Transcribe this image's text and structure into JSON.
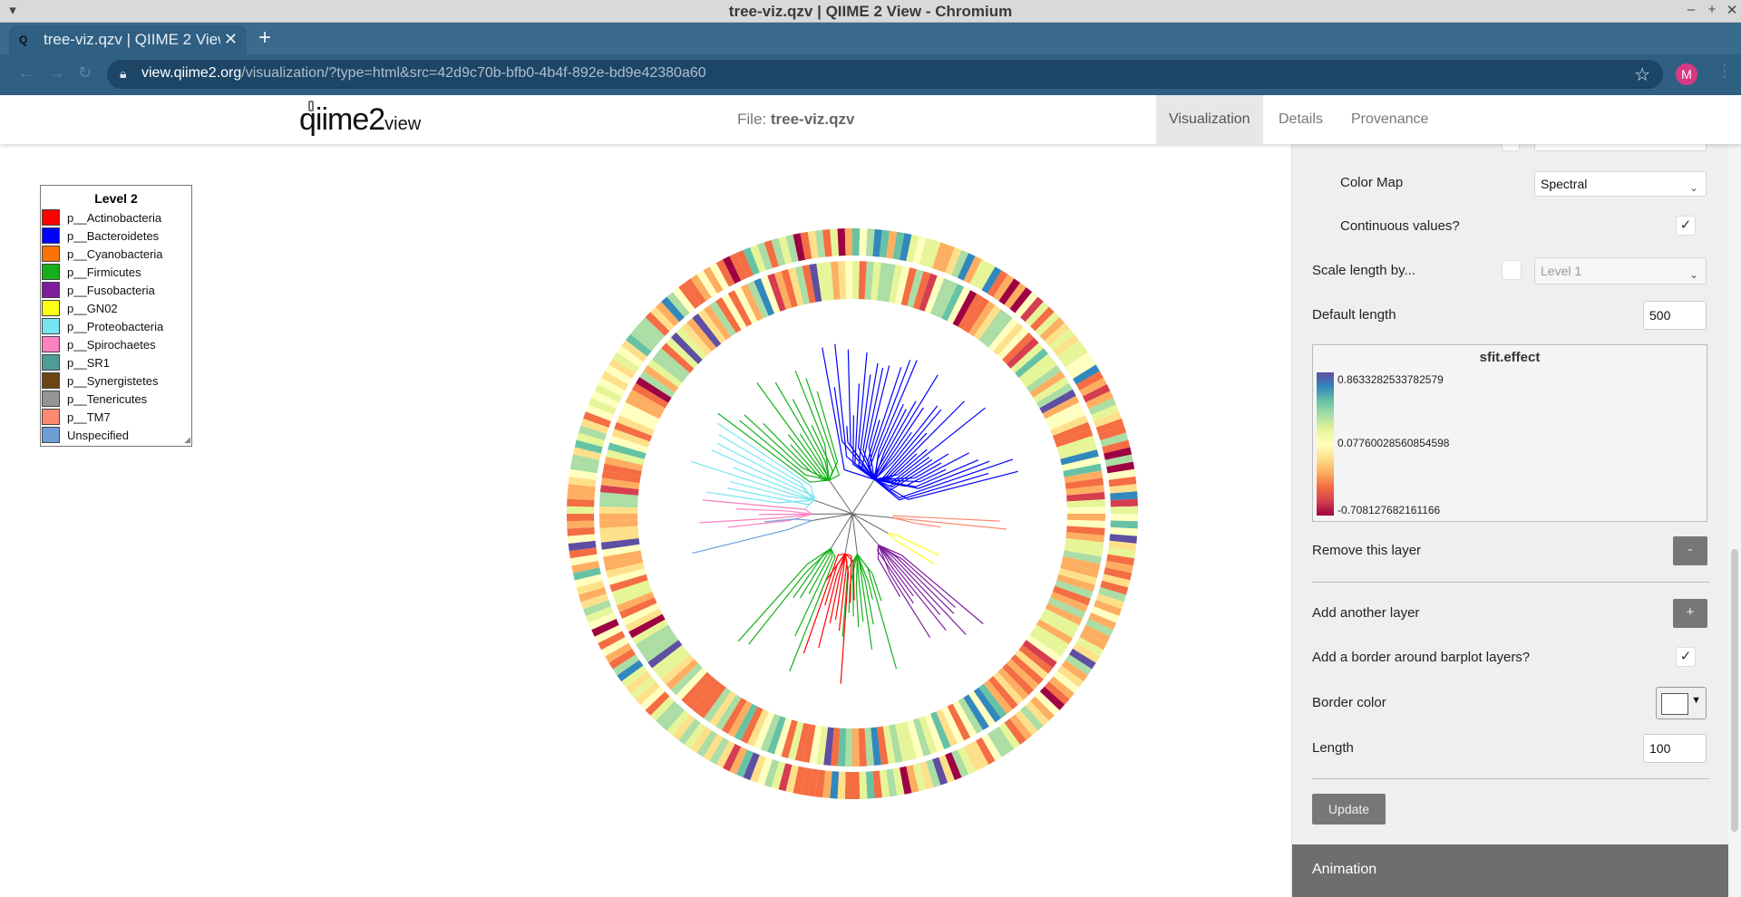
{
  "window": {
    "title": "tree-viz.qzv | QIIME 2 View - Chromium"
  },
  "browser": {
    "tab_title": "tree-viz.qzv | QIIME 2 View",
    "favicon_text": "Q",
    "url_domain": "view.qiime2.org",
    "url_path": "/visualization/?type=html&src=42d9c70b-bfb0-4b4f-892e-bd9e42380a60",
    "profile_initial": "M"
  },
  "header": {
    "logo_main": "qiime2",
    "logo_sub": "view",
    "file_prefix": "File: ",
    "file_name": "tree-viz.qzv",
    "tabs": [
      "Visualization",
      "Details",
      "Provenance"
    ],
    "active_tab": "Visualization"
  },
  "legend": {
    "title": "Level 2",
    "items": [
      {
        "label": "p__Actinobacteria",
        "color": "#ff0000"
      },
      {
        "label": "p__Bacteroidetes",
        "color": "#0000ff"
      },
      {
        "label": "p__Cyanobacteria",
        "color": "#f97306"
      },
      {
        "label": "p__Firmicutes",
        "color": "#15b01a"
      },
      {
        "label": "p__Fusobacteria",
        "color": "#7e1e9c"
      },
      {
        "label": "p__GN02",
        "color": "#ffff14"
      },
      {
        "label": "p__Proteobacteria",
        "color": "#75e6f0"
      },
      {
        "label": "p__Spirochaetes",
        "color": "#ff81c0"
      },
      {
        "label": "p__SR1",
        "color": "#4f9c94"
      },
      {
        "label": "p__Synergistetes",
        "color": "#6b4513"
      },
      {
        "label": "p__Tenericutes",
        "color": "#929591"
      },
      {
        "label": "p__TM7",
        "color": "#fc8a70"
      },
      {
        "label": "Unspecified",
        "color": "#6e9ed8"
      }
    ]
  },
  "panel": {
    "color_map_label": "Color Map",
    "color_map_value": "Spectral",
    "continuous_label": "Continuous values?",
    "continuous_checked": true,
    "scale_length_label": "Scale length by...",
    "scale_length_value": "Level 1",
    "default_length_label": "Default length",
    "default_length_value": "500",
    "colorbar": {
      "title": "sfit.effect",
      "max": "0.8633282533782579",
      "mid": "0.07760028560854598",
      "min": "-0.708127682161166"
    },
    "remove_layer_label": "Remove this layer",
    "remove_layer_button": "-",
    "add_layer_label": "Add another layer",
    "add_layer_button": "+",
    "border_label": "Add a border around barplot layers?",
    "border_checked": true,
    "border_color_label": "Border color",
    "length_label": "Length",
    "length_value": "100",
    "update_button": "Update",
    "animation_label": "Animation"
  }
}
